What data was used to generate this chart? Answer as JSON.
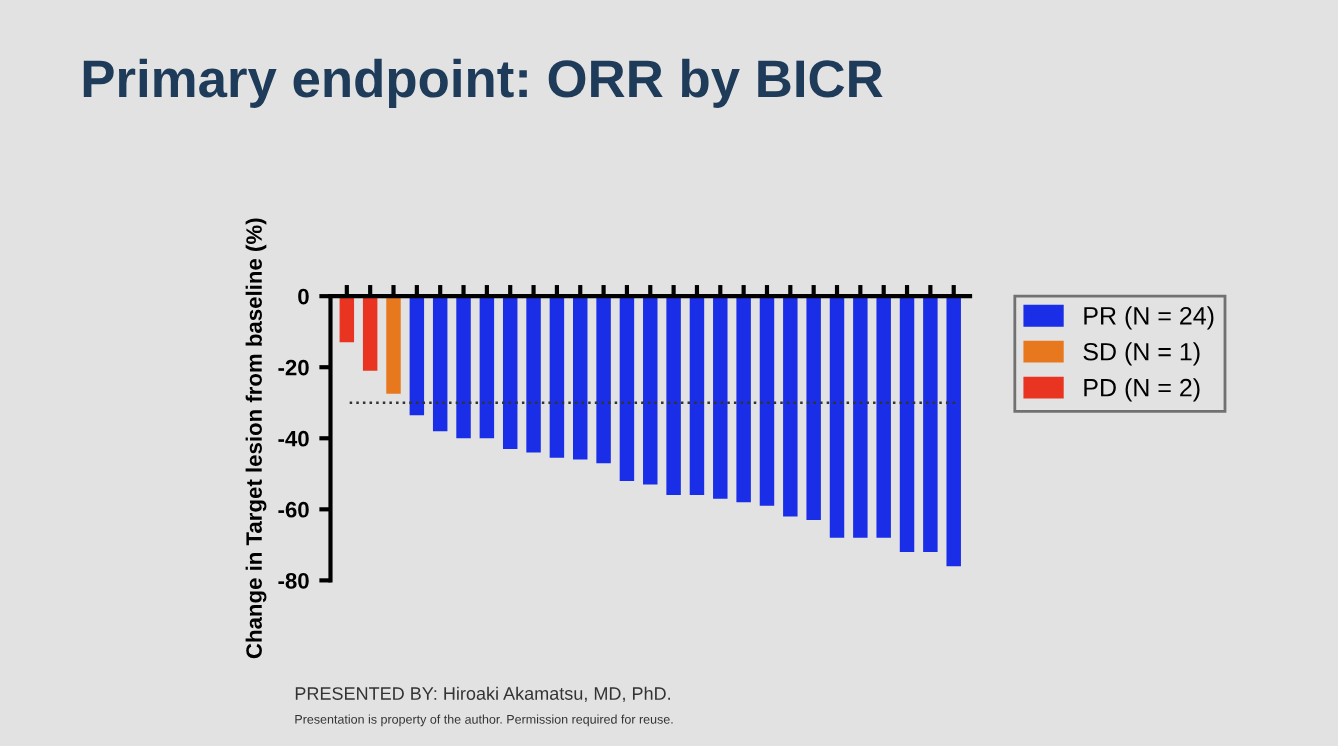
{
  "chart_data": {
    "type": "bar",
    "title": "Primary endpoint: ORR by BICR",
    "ylabel": "Change in Target lesion from baseline (%)",
    "categories": [
      null,
      null,
      null,
      null,
      null,
      null,
      null,
      null,
      null,
      null,
      null,
      null,
      null,
      null,
      null,
      null,
      null,
      null,
      null,
      null,
      null,
      null,
      null,
      null,
      null,
      null,
      null
    ],
    "series": [
      {
        "name": "PR (N = 24)",
        "color": "#1a2ee8",
        "values": [
          null,
          null,
          null,
          -33.5,
          -38,
          -40,
          -40,
          -43,
          -44,
          -45.5,
          -46,
          -47,
          -52,
          -53,
          -56,
          -56,
          -57,
          -58,
          -59,
          -62,
          -63,
          -68,
          -68,
          -68,
          -72,
          -72,
          -76
        ]
      },
      {
        "name": "SD (N = 1)",
        "color": "#e8781e",
        "values": [
          null,
          null,
          -27.5,
          null,
          null,
          null,
          null,
          null,
          null,
          null,
          null,
          null,
          null,
          null,
          null,
          null,
          null,
          null,
          null,
          null,
          null,
          null,
          null,
          null,
          null,
          null,
          null
        ]
      },
      {
        "name": "PD (N = 2)",
        "color": "#e83420",
        "values": [
          -13,
          -21,
          null,
          null,
          null,
          null,
          null,
          null,
          null,
          null,
          null,
          null,
          null,
          null,
          null,
          null,
          null,
          null,
          null,
          null,
          null,
          null,
          null,
          null,
          null,
          null,
          null
        ]
      }
    ],
    "ylim": [
      -80,
      0
    ],
    "yticks": [
      -80,
      -60,
      -40,
      -20,
      0
    ],
    "ref_lines": [
      {
        "axis": "y",
        "value": -30,
        "line_style": "dotted",
        "color": "#333333"
      }
    ],
    "legend": "right",
    "grid": false,
    "annotations": [
      "PRESENTED BY: Hiroaki Akamatsu, MD, PhD.",
      "Presentation is property of the author. Permission required for reuse."
    ]
  }
}
